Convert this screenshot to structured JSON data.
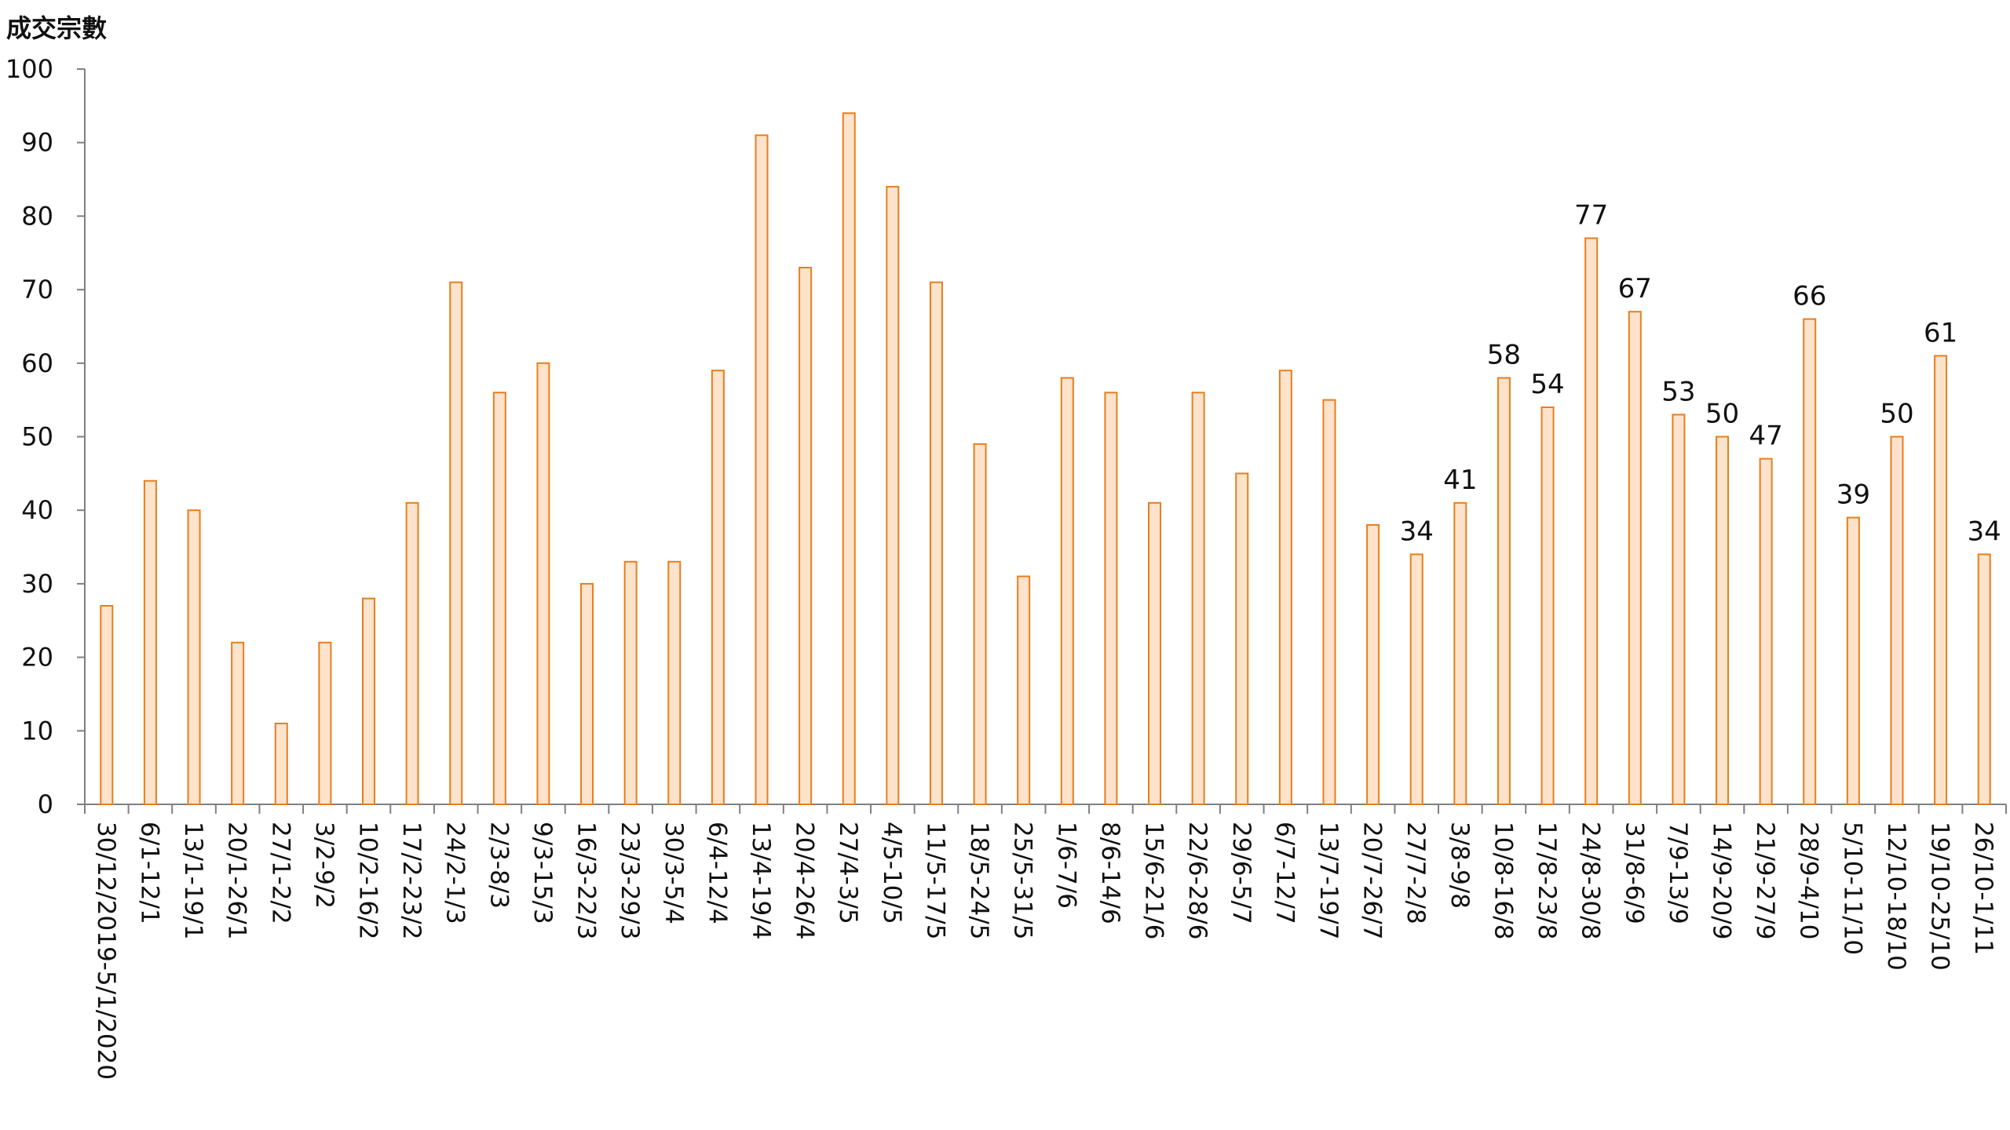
{
  "chart_data": {
    "type": "bar",
    "title": "",
    "xlabel": "",
    "ylabel": "成交宗數",
    "ylim": [
      0,
      100
    ],
    "yticks": [
      0,
      10,
      20,
      30,
      40,
      50,
      60,
      70,
      80,
      90,
      100
    ],
    "grid": false,
    "legend": "none",
    "colors": {
      "bar_fill": "#fde3cc",
      "bar_stroke": "#e87e1b",
      "axis": "#808080",
      "text": "#111111"
    },
    "categories": [
      "30/12/2019-5/1/2020",
      "6/1-12/1",
      "13/1-19/1",
      "20/1-26/1",
      "27/1-2/2",
      "3/2-9/2",
      "10/2-16/2",
      "17/2-23/2",
      "24/2-1/3",
      "2/3-8/3",
      "9/3-15/3",
      "16/3-22/3",
      "23/3-29/3",
      "30/3-5/4",
      "6/4-12/4",
      "13/4-19/4",
      "20/4-26/4",
      "27/4-3/5",
      "4/5-10/5",
      "11/5-17/5",
      "18/5-24/5",
      "25/5-31/5",
      "1/6-7/6",
      "8/6-14/6",
      "15/6-21/6",
      "22/6-28/6",
      "29/6-5/7",
      "6/7-12/7",
      "13/7-19/7",
      "20/7-26/7",
      "27/7-2/8",
      "3/8-9/8",
      "10/8-16/8",
      "17/8-23/8",
      "24/8-30/8",
      "31/8-6/9",
      "7/9-13/9",
      "14/9-20/9",
      "21/9-27/9",
      "28/9-4/10",
      "5/10-11/10",
      "12/10-18/10",
      "19/10-25/10",
      "26/10-1/11"
    ],
    "values": [
      27,
      44,
      40,
      22,
      11,
      22,
      28,
      41,
      71,
      56,
      60,
      30,
      33,
      33,
      59,
      91,
      73,
      94,
      84,
      71,
      49,
      31,
      58,
      56,
      41,
      56,
      45,
      59,
      55,
      38,
      34,
      41,
      58,
      54,
      77,
      67,
      53,
      50,
      47,
      66,
      39,
      50,
      61,
      34
    ],
    "data_labels": [
      "",
      "",
      "",
      "",
      "",
      "",
      "",
      "",
      "",
      "",
      "",
      "",
      "",
      "",
      "",
      "",
      "",
      "",
      "",
      "",
      "",
      "",
      "",
      "",
      "",
      "",
      "",
      "",
      "",
      "",
      "34",
      "41",
      "58",
      "54",
      "77",
      "67",
      "53",
      "50",
      "47",
      "66",
      "39",
      "50",
      "61",
      "34"
    ]
  }
}
